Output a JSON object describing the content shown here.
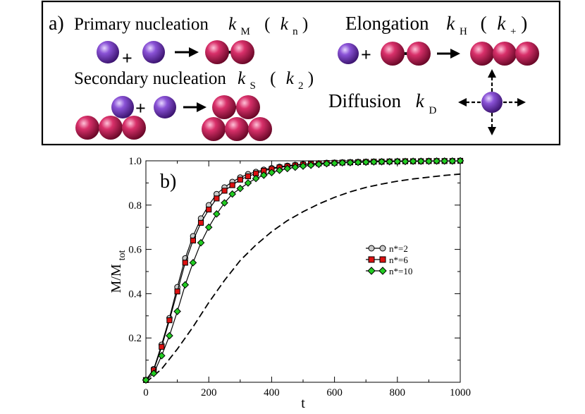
{
  "scheme": {
    "panel_label": "a)",
    "primary": {
      "label": "Primary nucleation",
      "k": "k",
      "k_sub": "M",
      "alt_open": "(",
      "alt_k": "k",
      "alt_sub": "n",
      "alt_close": ")",
      "plus": "+"
    },
    "secondary": {
      "label": "Secondary nucleation",
      "k": "k",
      "k_sub": "S",
      "alt_open": "(",
      "alt_k": "k",
      "alt_sub": "2",
      "alt_close": ")",
      "plus": "+"
    },
    "elongation": {
      "label": "Elongation",
      "k": "k",
      "k_sub": "H",
      "alt_open": "(",
      "alt_k": "k",
      "alt_sub": "+",
      "alt_close": ")",
      "plus": "+"
    },
    "diffusion": {
      "label": "Diffusion",
      "k": "k",
      "k_sub": "D"
    },
    "colors": {
      "monomer": "#7a3fc0",
      "aggregate": "#cc1f58"
    }
  },
  "chart_data": {
    "type": "line",
    "panel_label": "b)",
    "xlabel": "t",
    "ylabel": "M/M",
    "ylabel_sub": "tot",
    "xlim": [
      0,
      1000
    ],
    "ylim": [
      0,
      1.0
    ],
    "xticks": [
      "0",
      "200",
      "400",
      "600",
      "800",
      "1000"
    ],
    "yticks": [
      "0.2",
      "0.4",
      "0.6",
      "0.8",
      "1.0"
    ],
    "x": [
      0,
      25,
      50,
      75,
      100,
      125,
      150,
      175,
      200,
      225,
      250,
      275,
      300,
      325,
      350,
      375,
      400,
      425,
      450,
      475,
      500,
      525,
      550,
      575,
      600,
      625,
      650,
      675,
      700,
      725,
      750,
      775,
      800,
      825,
      850,
      875,
      900,
      925,
      950,
      975,
      1000
    ],
    "series": [
      {
        "name": "n*=2",
        "marker": "circle",
        "color": "#c8c8c8",
        "values": [
          0.01,
          0.06,
          0.17,
          0.29,
          0.43,
          0.56,
          0.66,
          0.74,
          0.8,
          0.85,
          0.88,
          0.905,
          0.925,
          0.94,
          0.95,
          0.96,
          0.967,
          0.973,
          0.978,
          0.982,
          0.985,
          0.987,
          0.989,
          0.991,
          0.992,
          0.993,
          0.994,
          0.995,
          0.996,
          0.996,
          0.997,
          0.997,
          0.998,
          0.998,
          0.998,
          0.999,
          0.999,
          0.999,
          0.999,
          0.999,
          1.0
        ]
      },
      {
        "name": "n*=6",
        "marker": "square",
        "color": "#dd1111",
        "values": [
          0.01,
          0.055,
          0.16,
          0.28,
          0.41,
          0.54,
          0.64,
          0.72,
          0.78,
          0.83,
          0.865,
          0.89,
          0.915,
          0.93,
          0.943,
          0.955,
          0.963,
          0.97,
          0.975,
          0.979,
          0.983,
          0.986,
          0.988,
          0.99,
          0.991,
          0.992,
          0.993,
          0.994,
          0.995,
          0.996,
          0.996,
          0.997,
          0.997,
          0.998,
          0.998,
          0.998,
          0.999,
          0.999,
          0.999,
          0.999,
          1.0
        ]
      },
      {
        "name": "n*=10",
        "marker": "diamond",
        "color": "#22cc22",
        "values": [
          0.01,
          0.04,
          0.12,
          0.21,
          0.32,
          0.44,
          0.54,
          0.63,
          0.7,
          0.76,
          0.81,
          0.85,
          0.875,
          0.9,
          0.92,
          0.935,
          0.947,
          0.957,
          0.965,
          0.971,
          0.976,
          0.98,
          0.984,
          0.987,
          0.989,
          0.991,
          0.992,
          0.993,
          0.994,
          0.995,
          0.996,
          0.996,
          0.997,
          0.997,
          0.998,
          0.998,
          0.998,
          0.999,
          0.999,
          0.999,
          1.0
        ]
      }
    ],
    "reference": {
      "style": "dashed",
      "color": "#000000",
      "x": [
        0,
        50,
        100,
        150,
        200,
        250,
        300,
        350,
        400,
        450,
        500,
        550,
        600,
        650,
        700,
        750,
        800,
        850,
        900,
        950,
        1000
      ],
      "values": [
        0.0,
        0.06,
        0.15,
        0.25,
        0.36,
        0.46,
        0.55,
        0.62,
        0.68,
        0.73,
        0.77,
        0.805,
        0.835,
        0.86,
        0.88,
        0.895,
        0.908,
        0.918,
        0.926,
        0.934,
        0.94
      ]
    },
    "legend": {
      "position": "right-middle"
    }
  }
}
